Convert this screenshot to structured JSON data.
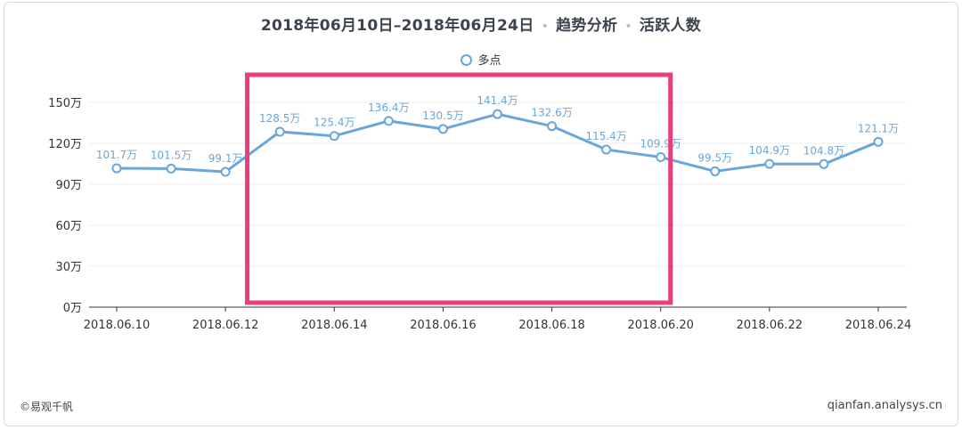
{
  "header": {
    "date_range": "2018年06月10日–2018年06月24日",
    "section": "趋势分析",
    "metric": "活跃人数",
    "separator": "•"
  },
  "legend": {
    "series_name": "多点"
  },
  "footer": {
    "copyright": "©易观千帆",
    "url": "qianfan.analysys.cn"
  },
  "colors": {
    "line": "#6aa6da",
    "label": "#6aa6da",
    "highlight": "#e83e7b",
    "grid": "#eeeeee",
    "axis_text": "#333333"
  },
  "chart_data": {
    "type": "line",
    "x": [
      "2018.06.10",
      "2018.06.11",
      "2018.06.12",
      "2018.06.13",
      "2018.06.14",
      "2018.06.15",
      "2018.06.16",
      "2018.06.17",
      "2018.06.18",
      "2018.06.19",
      "2018.06.20",
      "2018.06.21",
      "2018.06.22",
      "2018.06.23",
      "2018.06.24"
    ],
    "x_tick_labels": [
      "2018.06.10",
      "2018.06.12",
      "2018.06.14",
      "2018.06.16",
      "2018.06.18",
      "2018.06.20",
      "2018.06.22",
      "2018.06.24"
    ],
    "series": [
      {
        "name": "多点",
        "values": [
          101.7,
          101.5,
          99.1,
          128.5,
          125.4,
          136.4,
          130.5,
          141.4,
          132.6,
          115.4,
          109.9,
          99.5,
          104.9,
          104.8,
          121.1
        ],
        "labels": [
          "101.7万",
          "101.5万",
          "99.1万",
          "128.5万",
          "125.4万",
          "136.4万",
          "130.5万",
          "141.4万",
          "132.6万",
          "115.4万",
          "109.9万",
          "99.5万",
          "104.9万",
          "104.8万",
          "121.1万"
        ]
      }
    ],
    "y_ticks": [
      0,
      30,
      60,
      90,
      120,
      150
    ],
    "y_tick_labels": [
      "0万",
      "30万",
      "60万",
      "90万",
      "120万",
      "150万"
    ],
    "ylim": [
      0,
      150
    ],
    "grid": true,
    "highlight_range": [
      "2018.06.13",
      "2018.06.20"
    ]
  }
}
